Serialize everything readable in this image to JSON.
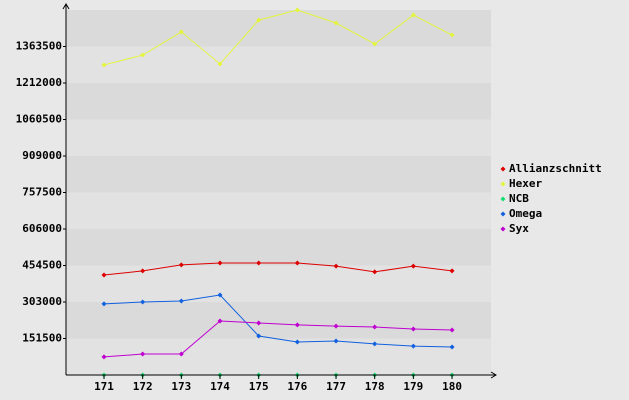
{
  "chart_data": {
    "type": "line",
    "categories": [
      "171",
      "172",
      "173",
      "174",
      "175",
      "176",
      "177",
      "178",
      "179",
      "180"
    ],
    "series": [
      {
        "name": "Allianzschnitt",
        "color": "#dd0000",
        "values": [
          415000,
          432000,
          457000,
          465000,
          465000,
          465000,
          452000,
          428000,
          452000,
          432000
        ]
      },
      {
        "name": "Hexer",
        "color": "#e4f53c",
        "values": [
          1287000,
          1328000,
          1424000,
          1291000,
          1473000,
          1515000,
          1461000,
          1374000,
          1494000,
          1411000
        ]
      },
      {
        "name": "NCB",
        "color": "#10e070",
        "values": [
          0,
          0,
          0,
          0,
          0,
          0,
          0,
          0,
          0,
          0
        ]
      },
      {
        "name": "Omega",
        "color": "#1060e0",
        "values": [
          295000,
          303000,
          307000,
          332000,
          162000,
          137000,
          141000,
          129000,
          120000,
          116000
        ]
      },
      {
        "name": "Syx",
        "color": "#c000d0",
        "values": [
          75000,
          87000,
          87000,
          224000,
          216000,
          208000,
          203000,
          199000,
          191000,
          187000
        ]
      }
    ],
    "ylim": [
      0,
      1515000
    ],
    "yticks": [
      151500,
      303000,
      454500,
      606000,
      757500,
      909000,
      1060500,
      1212000,
      1363500
    ],
    "grid": true,
    "legend": "right"
  }
}
